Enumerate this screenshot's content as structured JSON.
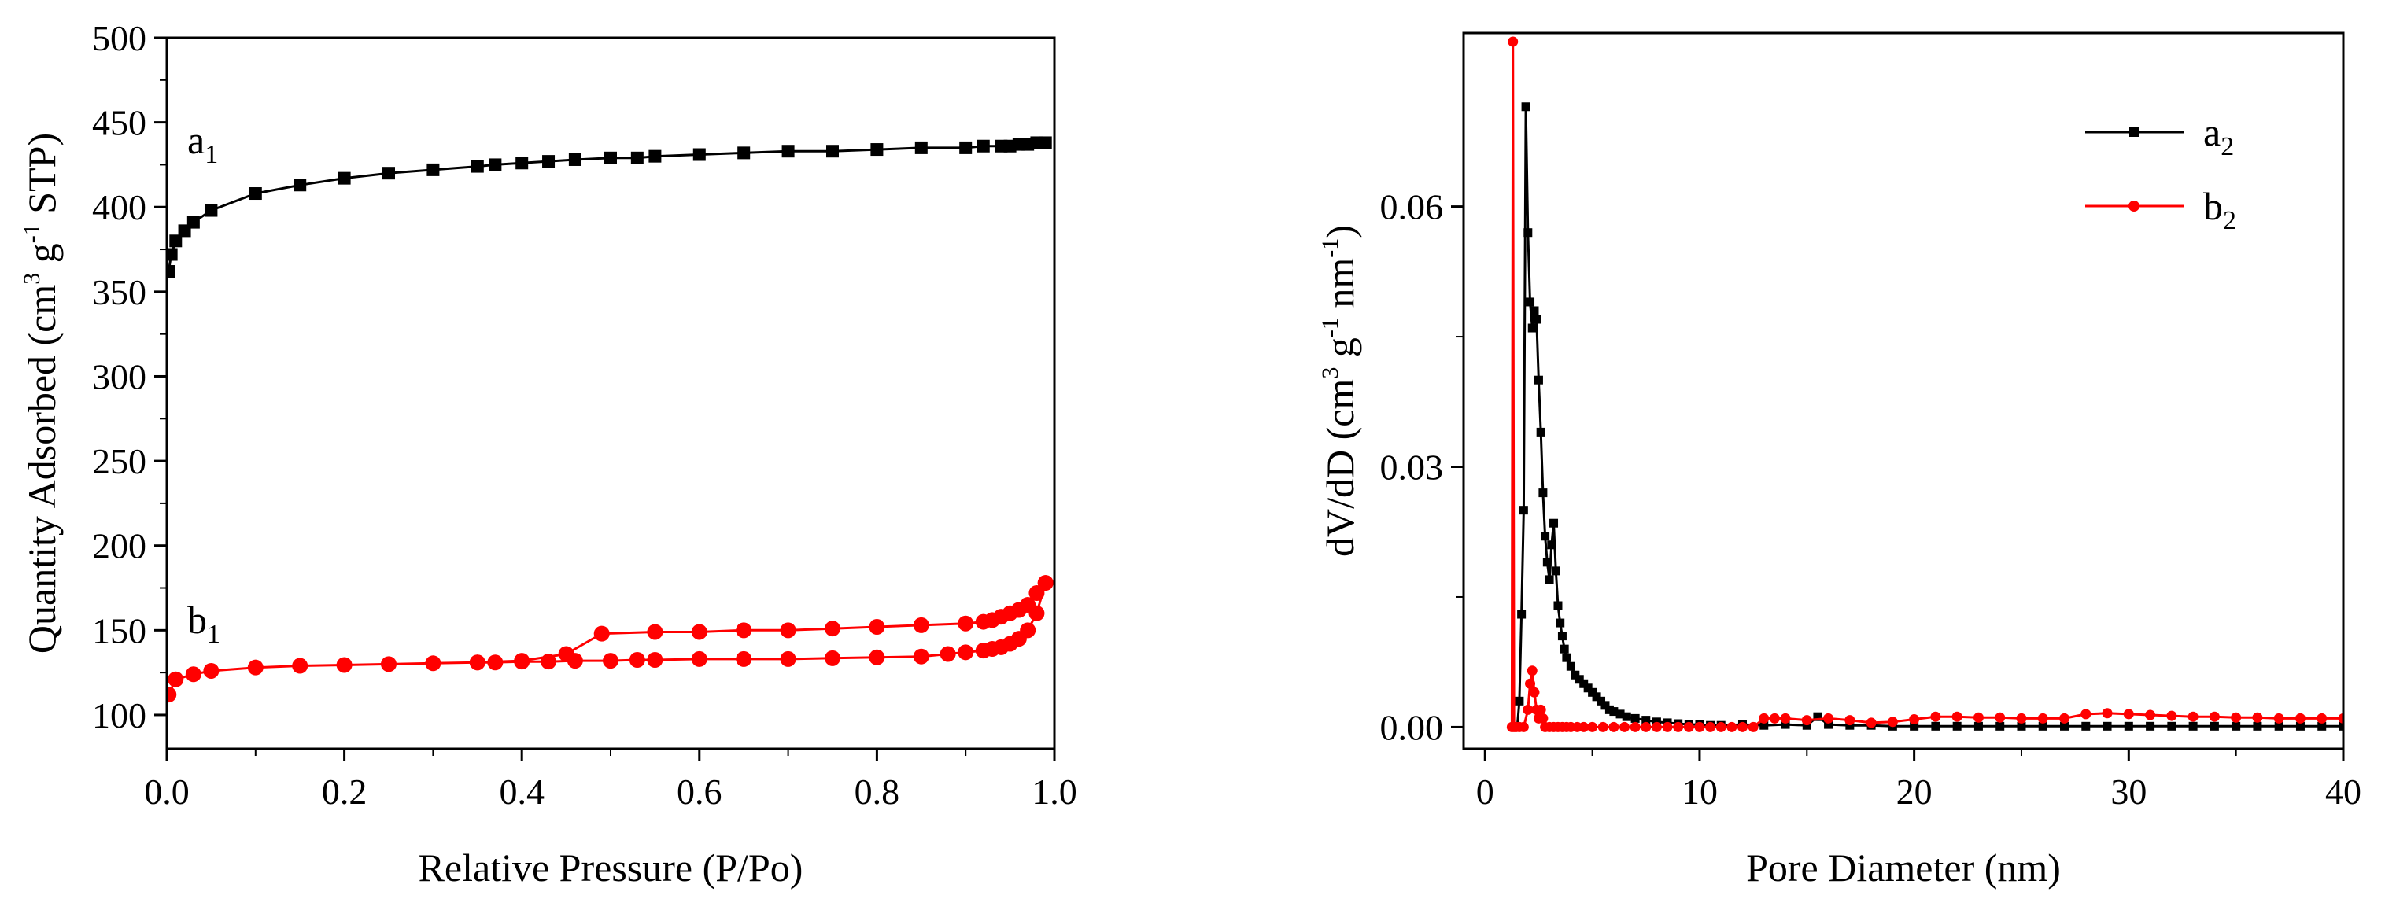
{
  "chart_data": [
    {
      "type": "line",
      "id": "isotherm",
      "xlabel": "Relative Pressure (P/Po)",
      "ylabel_parts": [
        "Quantity Adsorbed (cm",
        "3",
        " g",
        "-1",
        " STP)"
      ],
      "xlim": [
        0,
        1.0
      ],
      "ylim": [
        80,
        500
      ],
      "xticks": [
        0.0,
        0.2,
        0.4,
        0.6,
        0.8,
        1.0
      ],
      "xtick_labels": [
        "0.0",
        "0.2",
        "0.4",
        "0.6",
        "0.8",
        "1.0"
      ],
      "yticks": [
        100,
        150,
        200,
        250,
        300,
        350,
        400,
        450,
        500
      ],
      "ytick_labels": [
        "100",
        "150",
        "200",
        "250",
        "300",
        "350",
        "400",
        "450",
        "500"
      ],
      "series": [
        {
          "name": "a1",
          "label_main": "a",
          "label_sub": "1",
          "color": "#000000",
          "marker": "square",
          "x": [
            0.002,
            0.005,
            0.01,
            0.02,
            0.03,
            0.05,
            0.1,
            0.15,
            0.2,
            0.25,
            0.3,
            0.35,
            0.37,
            0.4,
            0.43,
            0.46,
            0.5,
            0.53,
            0.55,
            0.6,
            0.65,
            0.7,
            0.75,
            0.8,
            0.85,
            0.9,
            0.92,
            0.94,
            0.95,
            0.96,
            0.97,
            0.98,
            0.99
          ],
          "y": [
            362,
            372,
            380,
            386,
            391,
            398,
            408,
            413,
            417,
            420,
            422,
            424,
            425,
            426,
            427,
            428,
            429,
            429,
            430,
            431,
            432,
            433,
            433,
            434,
            435,
            435,
            436,
            436,
            436,
            437,
            437,
            438,
            438
          ]
        },
        {
          "name": "b1 adsorption",
          "label_main": "b",
          "label_sub": "1",
          "color": "#ff0000",
          "marker": "circle",
          "x": [
            0.002,
            0.01,
            0.03,
            0.05,
            0.1,
            0.15,
            0.2,
            0.25,
            0.3,
            0.35,
            0.37,
            0.4,
            0.43,
            0.46,
            0.5,
            0.53,
            0.55,
            0.6,
            0.65,
            0.7,
            0.75,
            0.8,
            0.85,
            0.88,
            0.9,
            0.92,
            0.93,
            0.94,
            0.95,
            0.96,
            0.97,
            0.98,
            0.99
          ],
          "y": [
            112,
            121,
            124,
            126,
            128,
            129,
            129.5,
            130,
            130.5,
            131,
            131,
            131.5,
            131.5,
            132,
            132,
            132.5,
            132.5,
            133,
            133,
            133,
            133.5,
            134,
            134.5,
            136,
            137,
            138,
            139,
            140,
            142,
            145,
            150,
            160,
            178
          ]
        },
        {
          "name": "b1 desorption",
          "color": "#ff0000",
          "marker": "circle",
          "x": [
            0.99,
            0.98,
            0.97,
            0.96,
            0.95,
            0.94,
            0.93,
            0.92,
            0.9,
            0.85,
            0.8,
            0.75,
            0.7,
            0.65,
            0.6,
            0.55,
            0.49,
            0.45,
            0.4,
            0.35
          ],
          "y": [
            178,
            172,
            165,
            162,
            160,
            158,
            156,
            155,
            154,
            153,
            152,
            151,
            150,
            150,
            149,
            149,
            148,
            136,
            132,
            131
          ]
        }
      ]
    },
    {
      "type": "line",
      "id": "psd",
      "xlabel": "Pore Diameter (nm)",
      "ylabel_parts": [
        "dV/dD (cm",
        "3",
        " g",
        "-1",
        " nm",
        "-1",
        ")"
      ],
      "xlim": [
        -1,
        40
      ],
      "ylim": [
        -0.0025,
        0.08
      ],
      "xticks": [
        0,
        10,
        20,
        30,
        40
      ],
      "xtick_labels": [
        "0",
        "10",
        "20",
        "30",
        "40"
      ],
      "yticks": [
        0.0,
        0.03,
        0.06
      ],
      "ytick_labels": [
        "0.00",
        "0.03",
        "0.06"
      ],
      "series": [
        {
          "name": "a2",
          "label_main": "a",
          "label_sub": "2",
          "color": "#000000",
          "marker": "square",
          "x": [
            1.4,
            1.5,
            1.6,
            1.7,
            1.8,
            1.9,
            2.0,
            2.1,
            2.2,
            2.3,
            2.4,
            2.5,
            2.6,
            2.7,
            2.8,
            2.9,
            3.0,
            3.1,
            3.2,
            3.3,
            3.4,
            3.5,
            3.6,
            3.7,
            3.8,
            4.0,
            4.2,
            4.4,
            4.6,
            4.8,
            5.0,
            5.2,
            5.4,
            5.6,
            5.8,
            6.0,
            6.3,
            6.6,
            7.0,
            7.5,
            8.0,
            8.5,
            9.0,
            9.5,
            10,
            10.5,
            11,
            12,
            13,
            14,
            15,
            15.5,
            16,
            17,
            18,
            19,
            20,
            21,
            22,
            23,
            24,
            25,
            26,
            27,
            28,
            29,
            30,
            31,
            32,
            33,
            34,
            35,
            36,
            37,
            38,
            39,
            40
          ],
          "y": [
            0.0,
            0.0,
            0.003,
            0.013,
            0.025,
            0.0715,
            0.057,
            0.049,
            0.046,
            0.048,
            0.047,
            0.04,
            0.034,
            0.027,
            0.022,
            0.019,
            0.017,
            0.021,
            0.0235,
            0.018,
            0.014,
            0.012,
            0.0105,
            0.009,
            0.008,
            0.007,
            0.006,
            0.0055,
            0.005,
            0.0045,
            0.004,
            0.0035,
            0.003,
            0.0025,
            0.002,
            0.0018,
            0.0015,
            0.0012,
            0.001,
            0.0008,
            0.0006,
            0.0005,
            0.0004,
            0.0003,
            0.0003,
            0.0002,
            0.0002,
            0.0003,
            0.0002,
            0.0003,
            0.0002,
            0.0012,
            0.0003,
            0.0002,
            0.0002,
            0.0001,
            0.0001,
            0.0001,
            0.0001,
            0.0001,
            0.0001,
            0.0001,
            0.0001,
            0.0001,
            0.0001,
            0.0001,
            0.0001,
            0.0001,
            0.0001,
            0.0001,
            0.0001,
            0.0001,
            0.0001,
            0.0001,
            0.0001,
            0.0001,
            0.0001
          ]
        },
        {
          "name": "b2",
          "label_main": "b",
          "label_sub": "2",
          "color": "#ff0000",
          "marker": "circle",
          "x": [
            1.25,
            1.3,
            1.35,
            1.45,
            1.6,
            1.8,
            2.0,
            2.1,
            2.2,
            2.3,
            2.4,
            2.5,
            2.6,
            2.7,
            2.8,
            3.0,
            3.2,
            3.4,
            3.6,
            3.8,
            4.0,
            4.3,
            4.6,
            5.0,
            5.5,
            6.0,
            6.5,
            7.0,
            7.5,
            8.0,
            8.5,
            9.0,
            9.5,
            10,
            10.5,
            11,
            11.5,
            12,
            12.5,
            13,
            13.5,
            14,
            15,
            16,
            17,
            18,
            19,
            20,
            21,
            22,
            23,
            24,
            25,
            26,
            27,
            28,
            29,
            30,
            31,
            32,
            33,
            34,
            35,
            36,
            37,
            38,
            39,
            40
          ],
          "y": [
            0.0,
            0.079,
            0.0,
            0.0,
            0.0,
            0.0,
            0.002,
            0.005,
            0.0065,
            0.004,
            0.002,
            0.001,
            0.002,
            0.001,
            0.0,
            0.0,
            0.0,
            0.0,
            0.0,
            0.0,
            0.0,
            0.0,
            0.0,
            0.0,
            0.0,
            0.0,
            0.0,
            0.0,
            0.0,
            0.0,
            0.0,
            0.0,
            0.0,
            0.0,
            0.0,
            0.0,
            0.0,
            0.0,
            0.0,
            0.001,
            0.001,
            0.001,
            0.0008,
            0.001,
            0.0008,
            0.0005,
            0.0006,
            0.0009,
            0.0012,
            0.0012,
            0.0011,
            0.0011,
            0.001,
            0.001,
            0.001,
            0.0015,
            0.0016,
            0.0015,
            0.0014,
            0.0013,
            0.0012,
            0.0012,
            0.0011,
            0.0011,
            0.001,
            0.001,
            0.001,
            0.001
          ]
        }
      ]
    }
  ]
}
